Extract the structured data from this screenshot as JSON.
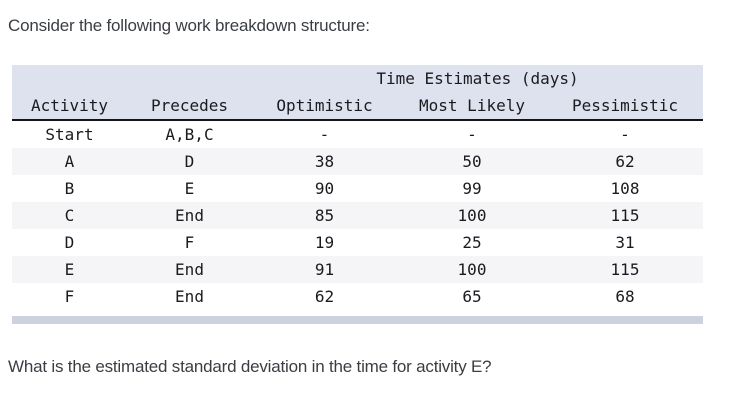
{
  "intro_text": "Consider the following work breakdown structure:",
  "question_text": "What is the estimated standard deviation in the time for activity E?",
  "table": {
    "group_header": "Time Estimates (days)",
    "columns": [
      "Activity",
      "Precedes",
      "Optimistic",
      "Most Likely",
      "Pessimistic"
    ],
    "rows": [
      [
        "Start",
        "A,B,C",
        "-",
        "-",
        "-"
      ],
      [
        "A",
        "D",
        "38",
        "50",
        "62"
      ],
      [
        "B",
        "E",
        "90",
        "99",
        "108"
      ],
      [
        "C",
        "End",
        "85",
        "100",
        "115"
      ],
      [
        "D",
        "F",
        "19",
        "25",
        "31"
      ],
      [
        "E",
        "End",
        "91",
        "100",
        "115"
      ],
      [
        "F",
        "End",
        "62",
        "65",
        "68"
      ]
    ]
  },
  "colors": {
    "header_background": "#dee2ee",
    "row_stripe": "#f5f4f6",
    "header_rule": "#131518",
    "footer_bar": "#cdd2de",
    "table_text": "#191b1e",
    "body_text": "#3a3e43"
  }
}
